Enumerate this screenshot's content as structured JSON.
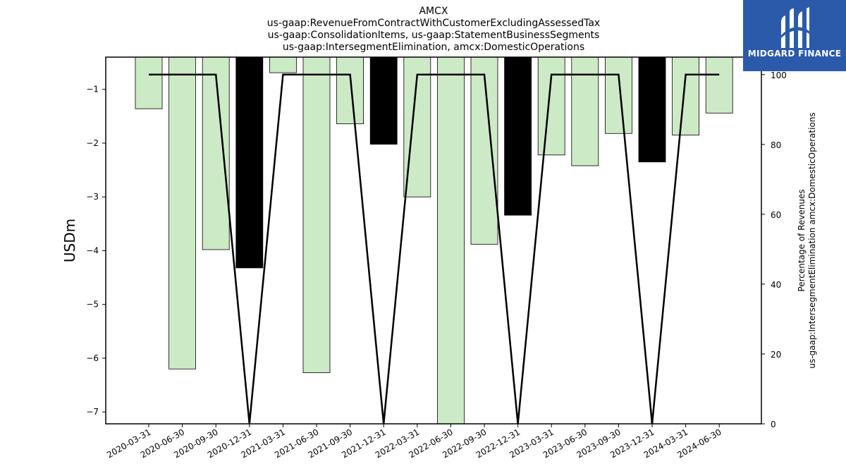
{
  "chart_data": {
    "type": "bar",
    "title_lines": [
      "AMCX",
      "us-gaap:RevenueFromContractWithCustomerExcludingAssessedTax",
      "us-gaap:ConsolidationItems, us-gaap:StatementBusinessSegments",
      "us-gaap:IntersegmentElimination, amcx:DomesticOperations"
    ],
    "ylabel": "USDm",
    "y2label_lines": [
      "Percentage of Revenues",
      "us-gaap:IntersegmentElimination amcx:DomesticOperations"
    ],
    "categories": [
      "2020-03-31",
      "2020-06-30",
      "2020-09-30",
      "2020-12-31",
      "2021-03-31",
      "2021-06-30",
      "2021-09-30",
      "2021-12-31",
      "2022-03-31",
      "2022-06-30",
      "2022-09-30",
      "2022-12-31",
      "2023-03-31",
      "2023-06-30",
      "2023-09-30",
      "2023-12-31",
      "2024-03-31",
      "2024-06-30"
    ],
    "series": [
      {
        "values": [
          -1.36,
          -6.2,
          -3.98,
          -4.32,
          -0.69,
          -6.27,
          -1.64,
          -2.02,
          -3.0,
          -7.22,
          -3.88,
          -3.34,
          -2.22,
          -2.42,
          -1.82,
          -2.35,
          -1.85,
          -1.44
        ],
        "bar_kind": [
          "quarter",
          "quarter",
          "quarter",
          "annual",
          "quarter",
          "quarter",
          "quarter",
          "annual",
          "quarter",
          "quarter",
          "quarter",
          "annual",
          "quarter",
          "quarter",
          "quarter",
          "annual",
          "quarter",
          "quarter"
        ]
      },
      {
        "axis": "right",
        "type": "line",
        "values": [
          100,
          100,
          100,
          0,
          100,
          100,
          100,
          0,
          100,
          100,
          100,
          0,
          100,
          100,
          100,
          0,
          100,
          100
        ]
      }
    ],
    "ylim": [
      -7.22,
      -0.4
    ],
    "yticks": [
      -1,
      -2,
      -3,
      -4,
      -5,
      -6,
      -7
    ],
    "ytick_labels": [
      "−1",
      "−2",
      "−3",
      "−4",
      "−5",
      "−6",
      "−7"
    ],
    "y2lim": [
      0,
      105
    ],
    "y2ticks": [
      0,
      20,
      40,
      60,
      80,
      100
    ],
    "colors": {
      "quarter": "#cdeac6",
      "annual": "#000000",
      "line": "#000000"
    }
  },
  "logo": {
    "text": "MIDGARD FINANCE",
    "background": "#2b5aaa"
  }
}
